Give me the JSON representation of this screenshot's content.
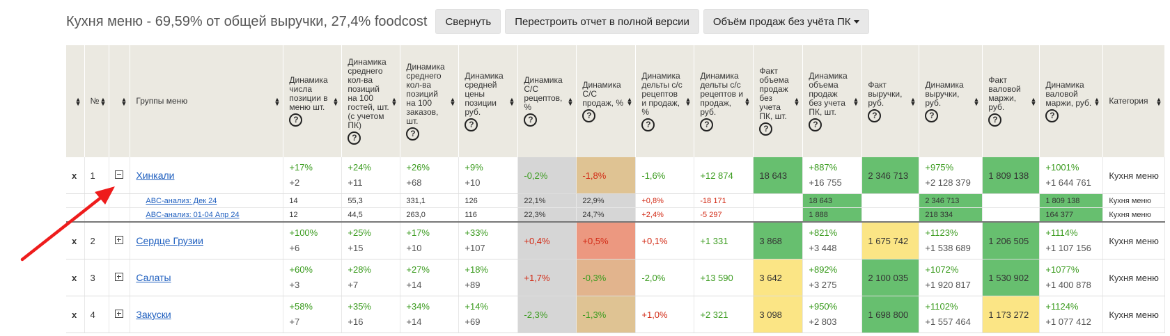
{
  "header": {
    "title": "Кухня меню - 69,59% от общей выручки, 27,4% foodcost",
    "collapse_label": "Свернуть",
    "rebuild_label": "Перестроить отчет в полной версии",
    "dropdown_label": "Объём продаж без учёта ПК"
  },
  "columns": [
    {
      "label": ""
    },
    {
      "label": "№"
    },
    {
      "label": ""
    },
    {
      "label": "Группы меню"
    },
    {
      "label": "Динамика числа позиции в меню шт."
    },
    {
      "label": "Динамика среднего кол-ва позиций на 100 гостей, шт. (с учетом ПК)"
    },
    {
      "label": "Динамика среднего кол-ва позиций на 100 заказов, шт."
    },
    {
      "label": "Динамика средней цены позиции руб."
    },
    {
      "label": "Динамика С/С рецептов, %"
    },
    {
      "label": "Динамика С/С продаж, %"
    },
    {
      "label": "Динамика дельты с/с рецептов и продаж, %"
    },
    {
      "label": "Динамика дельты с/с рецептов и продаж, руб."
    },
    {
      "label": "Факт объема продаж без учета ПК, шт."
    },
    {
      "label": "Динамика объема продаж без учета ПК, шт."
    },
    {
      "label": "Факт выручки, руб."
    },
    {
      "label": "Динамика выручки, руб."
    },
    {
      "label": "Факт валовой маржи, руб."
    },
    {
      "label": "Динамика валовой маржи, руб."
    },
    {
      "label": "Категория"
    }
  ],
  "rows": [
    {
      "x": "x",
      "num": "1",
      "name": "Хинкали",
      "c4a": "+17%",
      "c4b": "+2",
      "c5a": "+24%",
      "c5b": "+11",
      "c6a": "+26%",
      "c6b": "+68",
      "c7a": "+9%",
      "c7b": "+10",
      "c8": "-0,2%",
      "c9": "-1,8%",
      "c10": "-1,6%",
      "c11": "+12 874",
      "c12": "18 643",
      "c13a": "+887%",
      "c13b": "+16 755",
      "c14": "2 346 713",
      "c15a": "+975%",
      "c15b": "+2 128 379",
      "c16": "1 809 138",
      "c17a": "+1001%",
      "c17b": "+1 644 761",
      "cat": "Кухня меню"
    },
    {
      "x": "x",
      "num": "2",
      "name": "Сердце Грузии",
      "c4a": "+100%",
      "c4b": "+6",
      "c5a": "+25%",
      "c5b": "+15",
      "c6a": "+17%",
      "c6b": "+10",
      "c7a": "+33%",
      "c7b": "+107",
      "c8": "+0,4%",
      "c9": "+0,5%",
      "c10": "+0,1%",
      "c11": "+1 331",
      "c12": "3 868",
      "c13a": "+821%",
      "c13b": "+3 448",
      "c14": "1 675 742",
      "c15a": "+1123%",
      "c15b": "+1 538 689",
      "c16": "1 206 505",
      "c17a": "+1114%",
      "c17b": "+1 107 156",
      "cat": "Кухня меню"
    },
    {
      "x": "x",
      "num": "3",
      "name": "Салаты",
      "c4a": "+60%",
      "c4b": "+3",
      "c5a": "+28%",
      "c5b": "+7",
      "c6a": "+27%",
      "c6b": "+14",
      "c7a": "+18%",
      "c7b": "+89",
      "c8": "+1,7%",
      "c9": "-0,3%",
      "c10": "-2,0%",
      "c11": "+13 590",
      "c12": "3 642",
      "c13a": "+892%",
      "c13b": "+3 275",
      "c14": "2 100 035",
      "c15a": "+1072%",
      "c15b": "+1 920 817",
      "c16": "1 530 902",
      "c17a": "+1077%",
      "c17b": "+1 400 878",
      "cat": "Кухня меню"
    },
    {
      "x": "x",
      "num": "4",
      "name": "Закуски",
      "c4a": "+58%",
      "c4b": "+7",
      "c5a": "+35%",
      "c5b": "+16",
      "c6a": "+34%",
      "c6b": "+14",
      "c7a": "+14%",
      "c7b": "+69",
      "c8": "-2,3%",
      "c9": "-1,3%",
      "c10": "+1,0%",
      "c11": "+2 321",
      "c12": "3 098",
      "c13a": "+950%",
      "c13b": "+2 803",
      "c14": "1 698 800",
      "c15a": "+1102%",
      "c15b": "+1 557 464",
      "c16": "1 173 272",
      "c17a": "+1124%",
      "c17b": "+1 077 412",
      "cat": "Кухня меню"
    }
  ],
  "subrows": [
    {
      "name": "ABC-анализ: Дек 24",
      "c4": "14",
      "c5": "55,3",
      "c6": "331,1",
      "c7": "126",
      "c8": "22,1%",
      "c9": "22,9%",
      "c10": "+0,8%",
      "c11": "-18 171",
      "c12": "",
      "c13": "18 643",
      "c14": "",
      "c15": "2 346 713",
      "c16": "",
      "c17": "1 809 138",
      "cat": "Кухня меню"
    },
    {
      "name": "ABC-анализ: 01-04 Апр 24",
      "c4": "12",
      "c5": "44,5",
      "c6": "263,0",
      "c7": "116",
      "c8": "22,3%",
      "c9": "24,7%",
      "c10": "+2,4%",
      "c11": "-5 297",
      "c12": "",
      "c13": "1 888",
      "c14": "",
      "c15": "218 334",
      "c16": "",
      "c17": "164 377",
      "cat": "Кухня меню"
    }
  ],
  "colors": {
    "green": "#67bf6f",
    "yellow": "#fbe585",
    "gray": "#d6d6d6",
    "tan": "#dfc393",
    "salmon": "#ec9880",
    "arrow": "#ee1c1c"
  }
}
